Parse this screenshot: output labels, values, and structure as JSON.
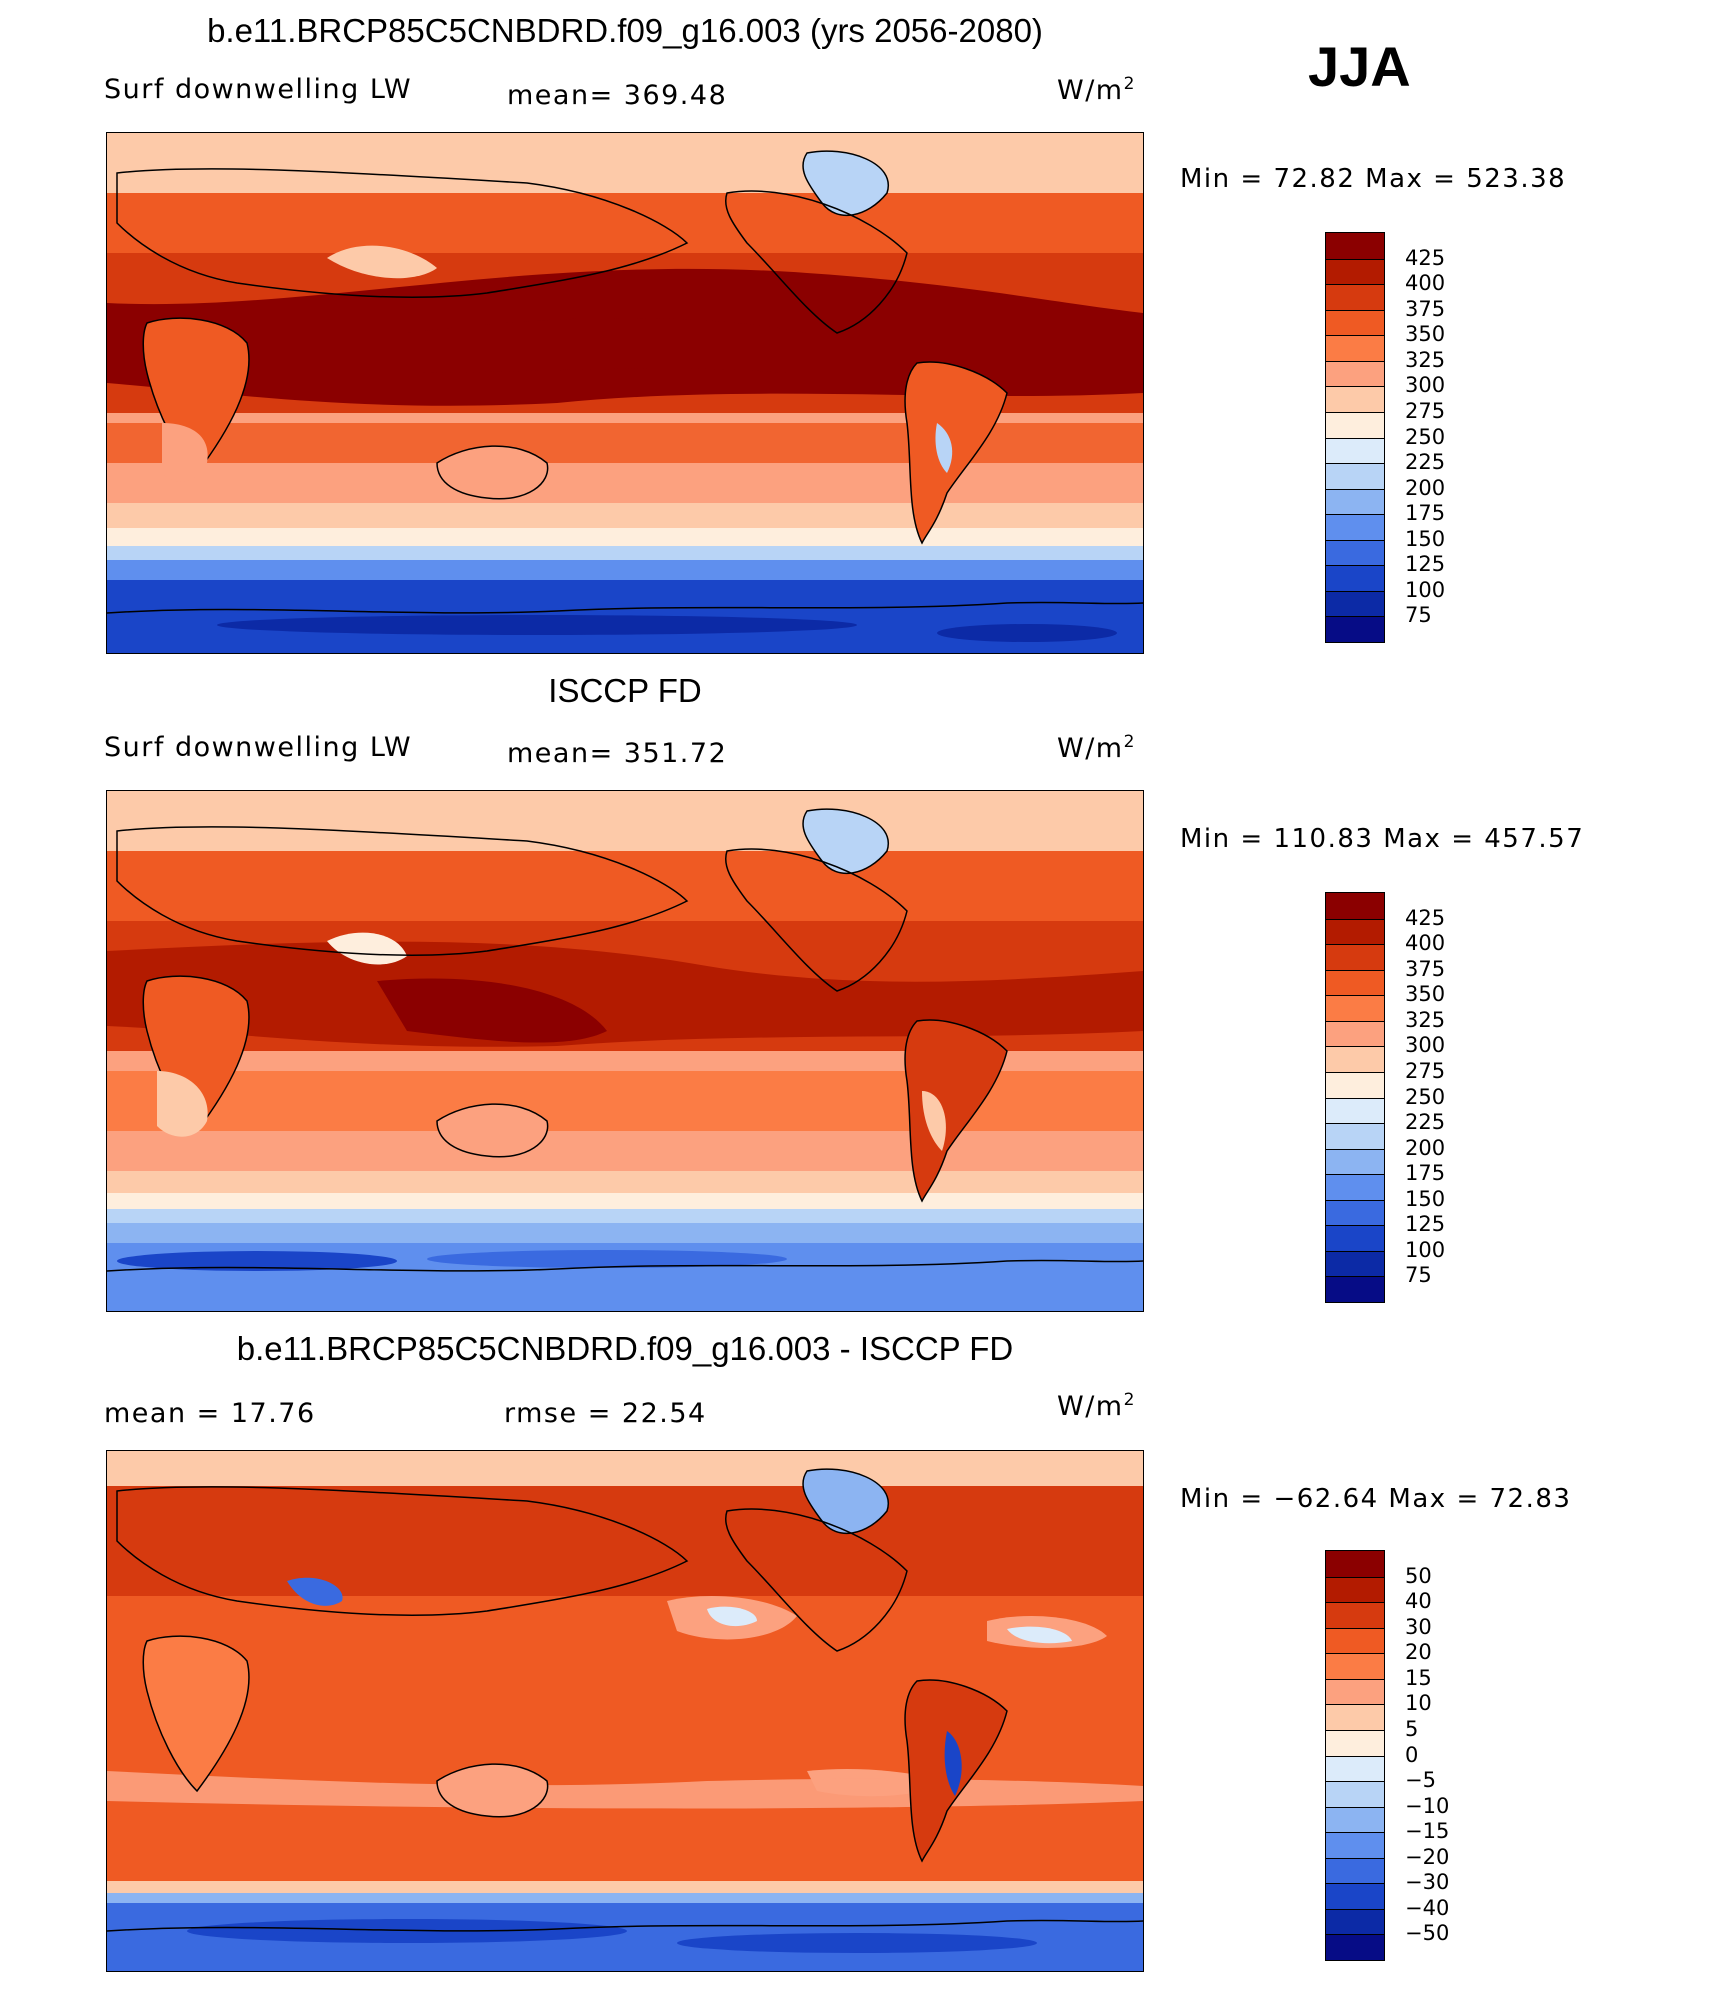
{
  "season": "JJA",
  "panels": [
    {
      "title": "b.e11.BRCP85C5CNBDRD.f09_g16.003 (yrs 2056-2080)",
      "variable": "Surf downwelling LW",
      "stat1": "mean= 369.48",
      "stat2": "",
      "units": "W/m",
      "units_exp": "2",
      "minmax": "Min =   72.82 Max = 523.38",
      "colorbar_levels": [
        "425",
        "400",
        "375",
        "350",
        "325",
        "300",
        "275",
        "250",
        "225",
        "200",
        "175",
        "150",
        "125",
        "100",
        "75"
      ],
      "colorbar_colors": [
        "#8b0000",
        "#b31b00",
        "#d63a0f",
        "#ef5a23",
        "#fb7c45",
        "#fca17f",
        "#fdcaa9",
        "#feeedd",
        "#dcebfa",
        "#b8d4f6",
        "#8cb4f2",
        "#5f8fee",
        "#3a6ae0",
        "#1a45c8",
        "#0c2aa6",
        "#060c86"
      ]
    },
    {
      "title": "ISCCP FD",
      "variable": "Surf downwelling LW",
      "stat1": "mean= 351.72",
      "stat2": "",
      "units": "W/m",
      "units_exp": "2",
      "minmax": "Min = 110.83 Max = 457.57",
      "colorbar_levels": [
        "425",
        "400",
        "375",
        "350",
        "325",
        "300",
        "275",
        "250",
        "225",
        "200",
        "175",
        "150",
        "125",
        "100",
        "75"
      ],
      "colorbar_colors": [
        "#8b0000",
        "#b31b00",
        "#d63a0f",
        "#ef5a23",
        "#fb7c45",
        "#fca17f",
        "#fdcaa9",
        "#feeedd",
        "#dcebfa",
        "#b8d4f6",
        "#8cb4f2",
        "#5f8fee",
        "#3a6ae0",
        "#1a45c8",
        "#0c2aa6",
        "#060c86"
      ]
    },
    {
      "title": "b.e11.BRCP85C5CNBDRD.f09_g16.003 - ISCCP FD",
      "variable": "",
      "stat1": "mean =   17.76",
      "stat2": "rmse =   22.54",
      "units": "W/m",
      "units_exp": "2",
      "minmax": "Min = −62.64 Max =   72.83",
      "colorbar_levels": [
        "50",
        "40",
        "30",
        "20",
        "15",
        "10",
        "5",
        "0",
        "−5",
        "−10",
        "−15",
        "−20",
        "−30",
        "−40",
        "−50"
      ],
      "colorbar_colors": [
        "#8b0000",
        "#b31b00",
        "#d63a0f",
        "#ef5a23",
        "#fb7c45",
        "#fca17f",
        "#fdcaa9",
        "#feeedd",
        "#dcebfa",
        "#b8d4f6",
        "#8cb4f2",
        "#5f8fee",
        "#3a6ae0",
        "#1a45c8",
        "#0c2aa6",
        "#060c86"
      ]
    }
  ]
}
